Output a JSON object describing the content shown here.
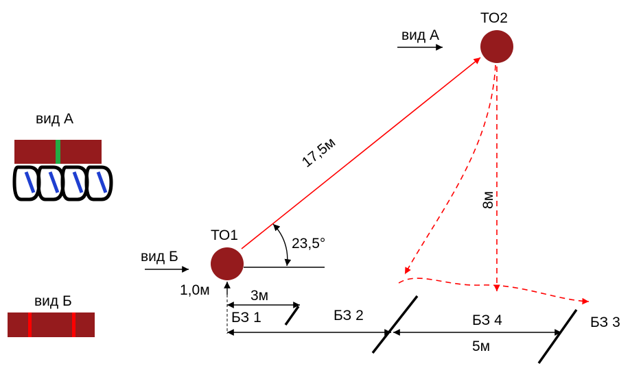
{
  "colors": {
    "node_fill": "#951b1d",
    "arrow_red": "#ff0000",
    "black": "#000000",
    "carabiner_blue": "#1f3fd0",
    "sling_green": "#22aa44"
  },
  "points": {
    "to1": "ТО1",
    "to2": "ТО2"
  },
  "views": {
    "view_a": "вид А",
    "view_b": "вид Б"
  },
  "dimensions": {
    "d_17_5": "17,5м",
    "angle": "23,5°",
    "d_8": "8м",
    "d_1_0": "1,0м",
    "d_3": "3м",
    "d_5": "5м"
  },
  "zones": {
    "bz1": "БЗ 1",
    "bz2": "БЗ 2",
    "bz3": "БЗ 3",
    "bz4": "БЗ 4"
  },
  "legend": {
    "view_a_title": "вид А",
    "view_b_title": "вид Б"
  }
}
